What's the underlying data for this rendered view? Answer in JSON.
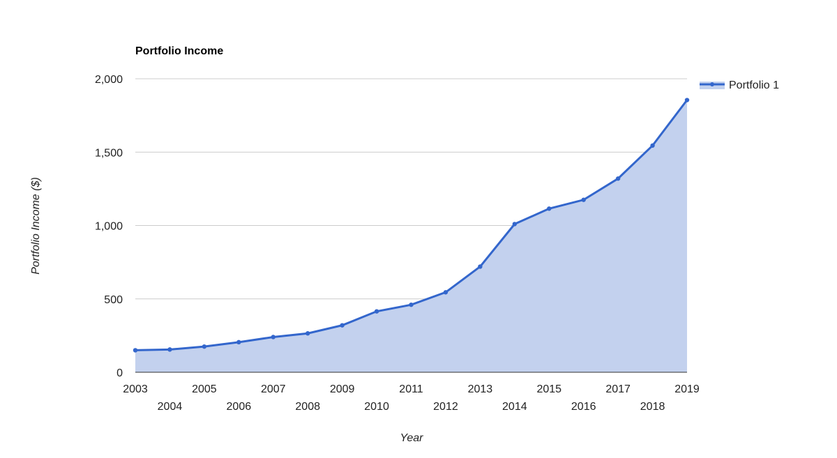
{
  "chart_data": {
    "type": "area",
    "title": "Portfolio Income",
    "xlabel": "Year",
    "ylabel": "Portfolio Income ($)",
    "x": [
      2003,
      2004,
      2005,
      2006,
      2007,
      2008,
      2009,
      2010,
      2011,
      2012,
      2013,
      2014,
      2015,
      2016,
      2017,
      2018,
      2019
    ],
    "series": [
      {
        "name": "Portfolio 1",
        "values": [
          150,
          155,
          175,
          205,
          240,
          265,
          320,
          415,
          460,
          545,
          720,
          1010,
          1115,
          1175,
          1320,
          1545,
          1855
        ]
      }
    ],
    "ylim": [
      0,
      2000
    ],
    "yticks": [
      "0",
      "500",
      "1,000",
      "1,500",
      "2,000"
    ],
    "xticks": [
      "2003",
      "2004",
      "2005",
      "2006",
      "2007",
      "2008",
      "2009",
      "2010",
      "2011",
      "2012",
      "2013",
      "2014",
      "2015",
      "2016",
      "2017",
      "2018",
      "2019"
    ],
    "grid": true,
    "legend_position": "right",
    "colors": {
      "line": "#3366cc",
      "fill": "#c3d1ee"
    }
  }
}
